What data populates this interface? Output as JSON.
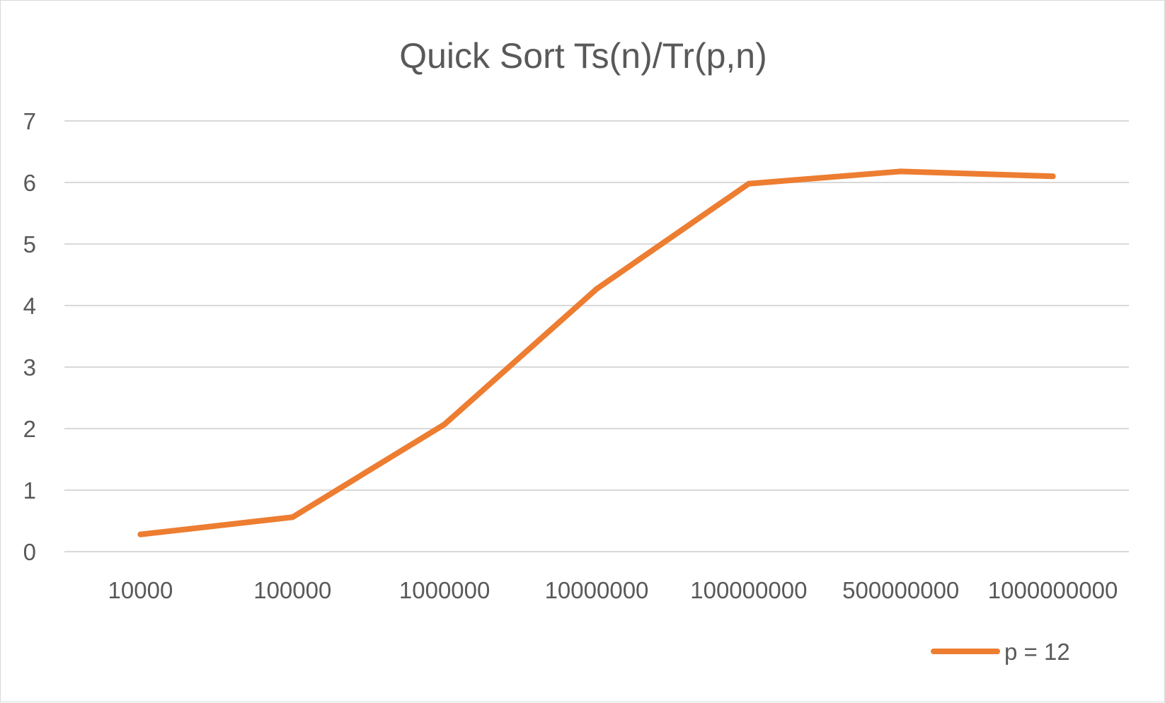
{
  "chart_data": {
    "type": "line",
    "title": "Quick Sort Ts(n)/Tr(p,n)",
    "xlabel": "",
    "ylabel": "",
    "categories": [
      "10000",
      "100000",
      "1000000",
      "10000000",
      "100000000",
      "500000000",
      "1000000000"
    ],
    "series": [
      {
        "name": "p = 12",
        "color": "#ed7d31",
        "values": [
          0.28,
          0.56,
          2.07,
          4.27,
          5.98,
          6.18,
          6.1
        ]
      }
    ],
    "ylim": [
      0,
      7
    ],
    "yticks": [
      "0",
      "1",
      "2",
      "3",
      "4",
      "5",
      "6",
      "7"
    ],
    "grid": true,
    "legend_position": "bottom-right",
    "colors": {
      "gridline": "#d9d9d9",
      "text": "#595959",
      "border": "#d9d9d9"
    }
  }
}
